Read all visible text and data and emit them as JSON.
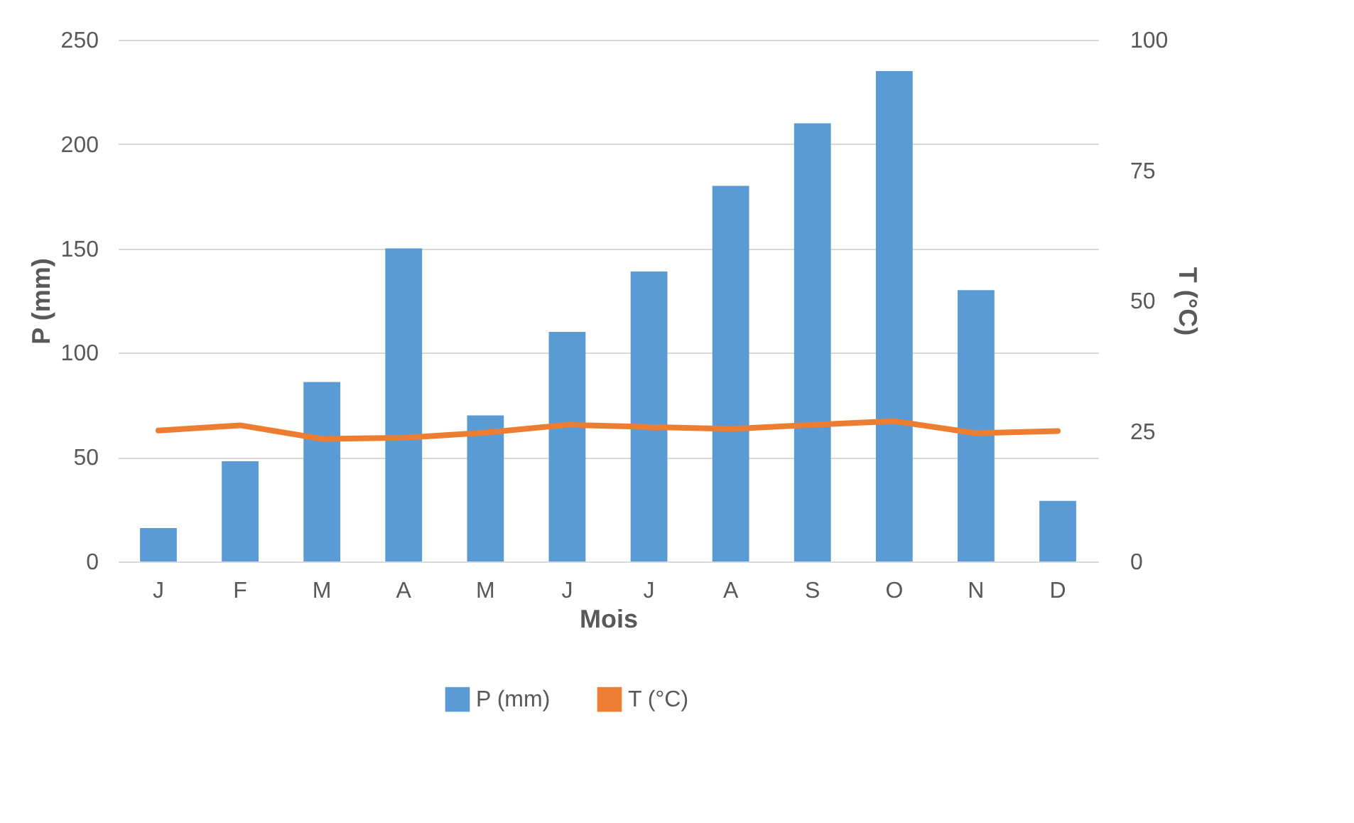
{
  "chart_data": {
    "type": "bar",
    "xlabel": "Mois",
    "ylabel": "P (mm)",
    "y2label": "T (°C)",
    "categories": [
      "J",
      "F",
      "M",
      "A",
      "M",
      "J",
      "J",
      "A",
      "S",
      "O",
      "N",
      "D"
    ],
    "series": [
      {
        "name": "P (mm)",
        "color": "#5b9bd5",
        "values": [
          16,
          48,
          86,
          150,
          70,
          110,
          139,
          180,
          210,
          235,
          130,
          29
        ]
      },
      {
        "name": "T (°C)",
        "type": "line",
        "axis": "y2",
        "color": "#ed7d31",
        "values": [
          25.1,
          26.1,
          23.5,
          23.7,
          24.7,
          26.2,
          25.8,
          25.4,
          26.2,
          26.9,
          24.6,
          25.0
        ]
      }
    ],
    "ylim": [
      0,
      250
    ],
    "yticks": [
      0,
      50,
      100,
      150,
      200,
      250
    ],
    "y2lim": [
      0,
      100
    ],
    "y2ticks": [
      0,
      25,
      50,
      75,
      100
    ],
    "grid": "y",
    "legend": "bottom",
    "marker": "none",
    "line_style": "solid"
  }
}
